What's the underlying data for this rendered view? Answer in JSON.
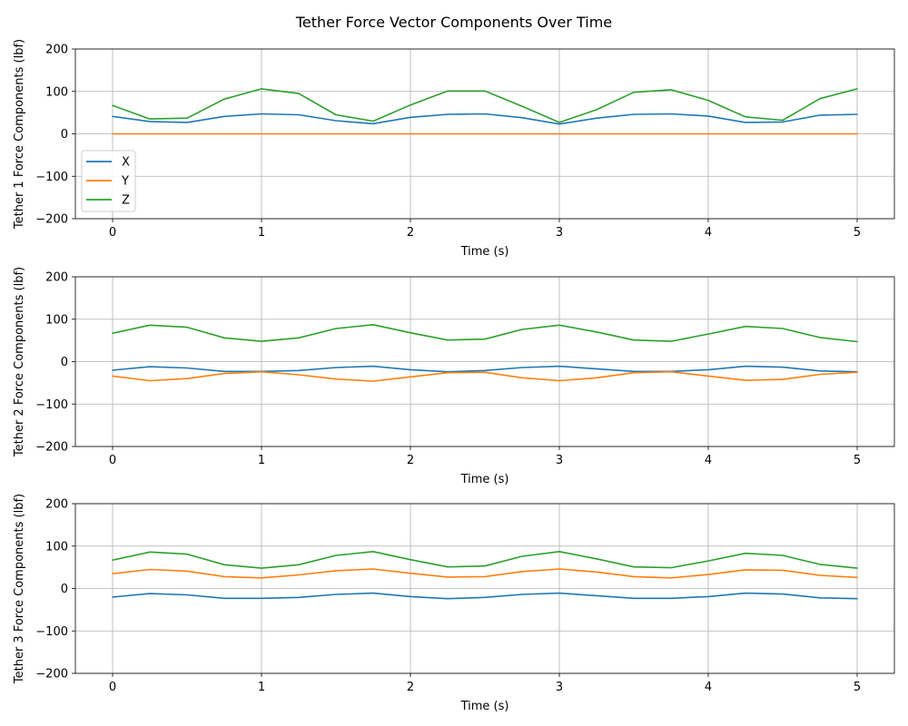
{
  "figure": {
    "title": "Tether Force Vector Components Over Time"
  },
  "colors": {
    "X": "#1f77b4",
    "Y": "#ff7f0e",
    "Z": "#2ca02c",
    "grid": "#b0b0b0"
  },
  "chart_data": [
    {
      "type": "line",
      "xlabel": "Time (s)",
      "ylabel": "Tether 1 Force Components (lbf)",
      "xlim": [
        -0.25,
        5.25
      ],
      "ylim": [
        -200,
        200
      ],
      "xticks": [
        0,
        1,
        2,
        3,
        4,
        5
      ],
      "yticks": [
        -200,
        -100,
        0,
        100,
        200
      ],
      "grid": true,
      "legend": "center-left",
      "x": [
        0,
        0.25,
        0.5,
        0.75,
        1,
        1.25,
        1.5,
        1.75,
        2,
        2.25,
        2.5,
        2.75,
        3,
        3.25,
        3.5,
        3.75,
        4,
        4.25,
        4.5,
        4.75,
        5
      ],
      "series": [
        {
          "name": "X",
          "color": "#1f77b4",
          "values": [
            41,
            29,
            27,
            41,
            47,
            45,
            31,
            24,
            39,
            46,
            47,
            38,
            23,
            37,
            46,
            47,
            42,
            27,
            28,
            44,
            46
          ]
        },
        {
          "name": "Y",
          "color": "#ff7f0e",
          "values": [
            0,
            0,
            0,
            0,
            0,
            0,
            0,
            0,
            0,
            0,
            0,
            0,
            0,
            0,
            0,
            0,
            0,
            0,
            0,
            0,
            0
          ]
        },
        {
          "name": "Z",
          "color": "#2ca02c",
          "values": [
            67,
            35,
            37,
            82,
            106,
            95,
            45,
            30,
            68,
            101,
            101,
            65,
            27,
            57,
            98,
            104,
            79,
            40,
            32,
            83,
            106
          ]
        }
      ]
    },
    {
      "type": "line",
      "xlabel": "Time (s)",
      "ylabel": "Tether 2 Force Components (lbf)",
      "xlim": [
        -0.25,
        5.25
      ],
      "ylim": [
        -200,
        200
      ],
      "xticks": [
        0,
        1,
        2,
        3,
        4,
        5
      ],
      "yticks": [
        -200,
        -100,
        0,
        100,
        200
      ],
      "grid": true,
      "legend": "",
      "x": [
        0,
        0.25,
        0.5,
        0.75,
        1,
        1.25,
        1.5,
        1.75,
        2,
        2.25,
        2.5,
        2.75,
        3,
        3.25,
        3.5,
        3.75,
        4,
        4.25,
        4.5,
        4.75,
        5
      ],
      "series": [
        {
          "name": "X",
          "color": "#1f77b4",
          "values": [
            -20,
            -12,
            -15,
            -23,
            -23,
            -21,
            -14,
            -11,
            -19,
            -24,
            -21,
            -14,
            -11,
            -17,
            -23,
            -23,
            -19,
            -11,
            -13,
            -22,
            -24
          ]
        },
        {
          "name": "Y",
          "color": "#ff7f0e",
          "values": [
            -34,
            -45,
            -40,
            -28,
            -24,
            -31,
            -41,
            -46,
            -36,
            -26,
            -25,
            -38,
            -45,
            -38,
            -26,
            -24,
            -34,
            -44,
            -42,
            -30,
            -25
          ]
        },
        {
          "name": "Z",
          "color": "#2ca02c",
          "values": [
            67,
            86,
            81,
            56,
            48,
            56,
            78,
            87,
            68,
            51,
            53,
            76,
            86,
            70,
            51,
            48,
            65,
            83,
            78,
            57,
            47
          ]
        }
      ]
    },
    {
      "type": "line",
      "xlabel": "Time (s)",
      "ylabel": "Tether 3 Force Components (lbf)",
      "xlim": [
        -0.25,
        5.25
      ],
      "ylim": [
        -200,
        200
      ],
      "xticks": [
        0,
        1,
        2,
        3,
        4,
        5
      ],
      "yticks": [
        -200,
        -100,
        0,
        100,
        200
      ],
      "grid": true,
      "legend": "",
      "x": [
        0,
        0.25,
        0.5,
        0.75,
        1,
        1.25,
        1.5,
        1.75,
        2,
        2.25,
        2.5,
        2.75,
        3,
        3.25,
        3.5,
        3.75,
        4,
        4.25,
        4.5,
        4.75,
        5
      ],
      "series": [
        {
          "name": "X",
          "color": "#1f77b4",
          "values": [
            -20,
            -12,
            -15,
            -23,
            -23,
            -21,
            -14,
            -11,
            -19,
            -24,
            -21,
            -14,
            -11,
            -17,
            -23,
            -23,
            -19,
            -11,
            -13,
            -22,
            -24
          ]
        },
        {
          "name": "Y",
          "color": "#ff7f0e",
          "values": [
            35,
            45,
            41,
            28,
            25,
            32,
            42,
            46,
            36,
            27,
            28,
            40,
            46,
            39,
            28,
            25,
            33,
            44,
            43,
            31,
            26
          ]
        },
        {
          "name": "Z",
          "color": "#2ca02c",
          "values": [
            67,
            86,
            81,
            56,
            48,
            56,
            78,
            87,
            68,
            51,
            53,
            76,
            87,
            70,
            51,
            49,
            65,
            83,
            78,
            57,
            48
          ]
        }
      ]
    }
  ]
}
